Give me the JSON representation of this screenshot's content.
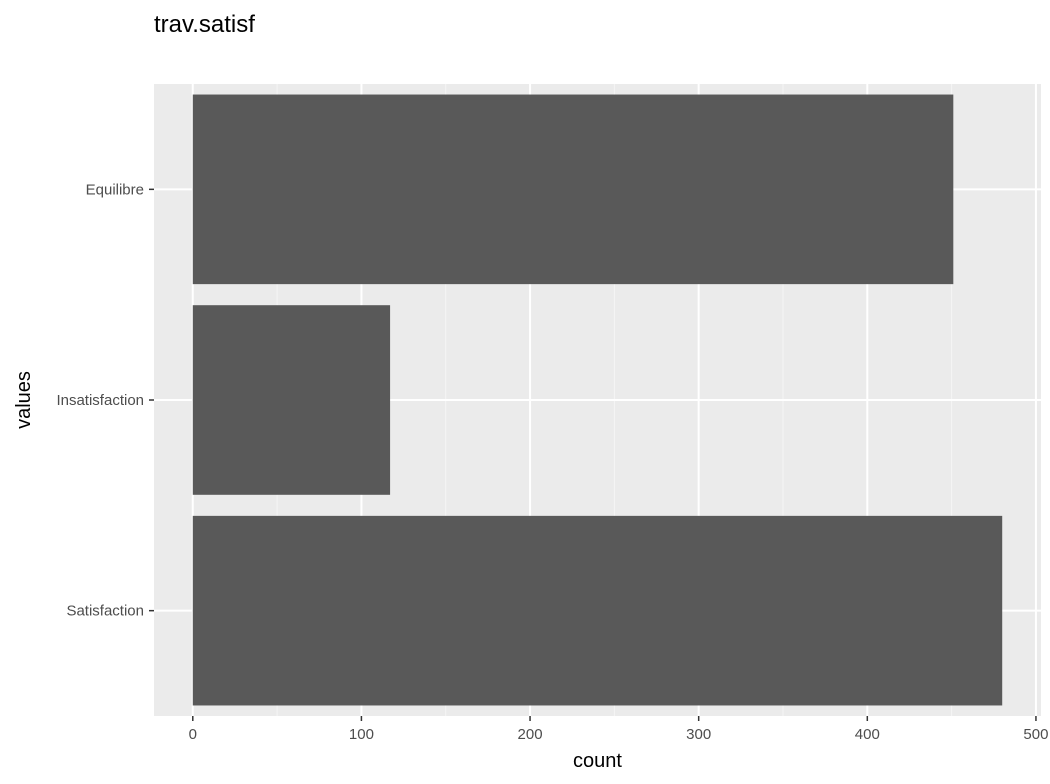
{
  "chart_data": {
    "type": "bar",
    "orientation": "horizontal",
    "title": "trav.satisf",
    "xlabel": "count",
    "ylabel": "values",
    "categories": [
      "Equilibre",
      "Insatisfaction",
      "Satisfaction"
    ],
    "values": [
      451,
      117,
      480
    ],
    "xlim": [
      -23,
      503
    ],
    "xticks": [
      0,
      100,
      200,
      300,
      400,
      500
    ],
    "xtick_labels": [
      "0",
      "100",
      "200",
      "300",
      "400",
      "500"
    ],
    "grid": true,
    "legend": "none",
    "colors": {
      "bar": "#595959",
      "panel": "#ebebeb",
      "grid_major": "#ffffff",
      "grid_minor": "#f5f5f5",
      "tick": "#333333",
      "tick_text": "#4d4d4d"
    }
  }
}
